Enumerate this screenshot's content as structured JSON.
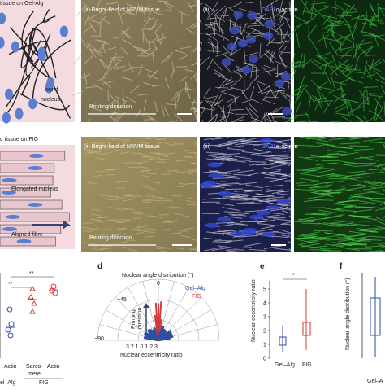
{
  "panel_b": {
    "schematic_title": "tissue on Gel-Alg",
    "schematic_label_1": "ound",
    "schematic_label_2": "nucleus",
    "brightfield_title": "(ii) Bright-field of NRVM tissue",
    "stain_title": "(iii)",
    "stain_dapi": "DAPI",
    "stain_actinin": "α-actinin",
    "direction": "Printing direction"
  },
  "panel_c": {
    "schematic_title": "c tissue on FIG",
    "schematic_label_1": "Elongated nucleus",
    "schematic_label_2": "Aligned fibre",
    "brightfield_title": "(ii) Bright-field of NRVM tissue",
    "stain_title": "(iii)",
    "stain_dapi": "DAPI",
    "stain_actinin": "α-actinin",
    "direction": "Printing direction"
  },
  "panel_left": {
    "sig_1": "**",
    "sig_2": "**",
    "cat_1": "Actin",
    "cat_2a": "Sarco-",
    "cat_2b": "mere",
    "cat_3": "Actin",
    "group_fig": "FIG",
    "group_gel": "el–Alg"
  },
  "panel_d": {
    "letter": "d",
    "title": "Nuclear angle distribution (°)",
    "legend_gel": "Gel–Alg",
    "legend_fig": "FIG",
    "angle_m45": "−45",
    "angle_m90": "−90",
    "angle_0": "0",
    "direction_1": "Printing",
    "direction_2": "direction",
    "radial_ticks": "3  2  1  0  1  2  3",
    "xlabel": "Nuclear eccentricity ratio"
  },
  "panel_e": {
    "letter": "e",
    "ylabel": "Nuclear eccentricity ratio",
    "sig": "*",
    "yticks": [
      "5",
      "4",
      "3",
      "2",
      "1",
      "0"
    ],
    "cat_1": "Gel–Alg",
    "cat_2": "FIG"
  },
  "panel_f": {
    "letter": "f",
    "ylabel": "Nuclear angle distribution (°)",
    "cat_1": "Gel–A"
  }
}
